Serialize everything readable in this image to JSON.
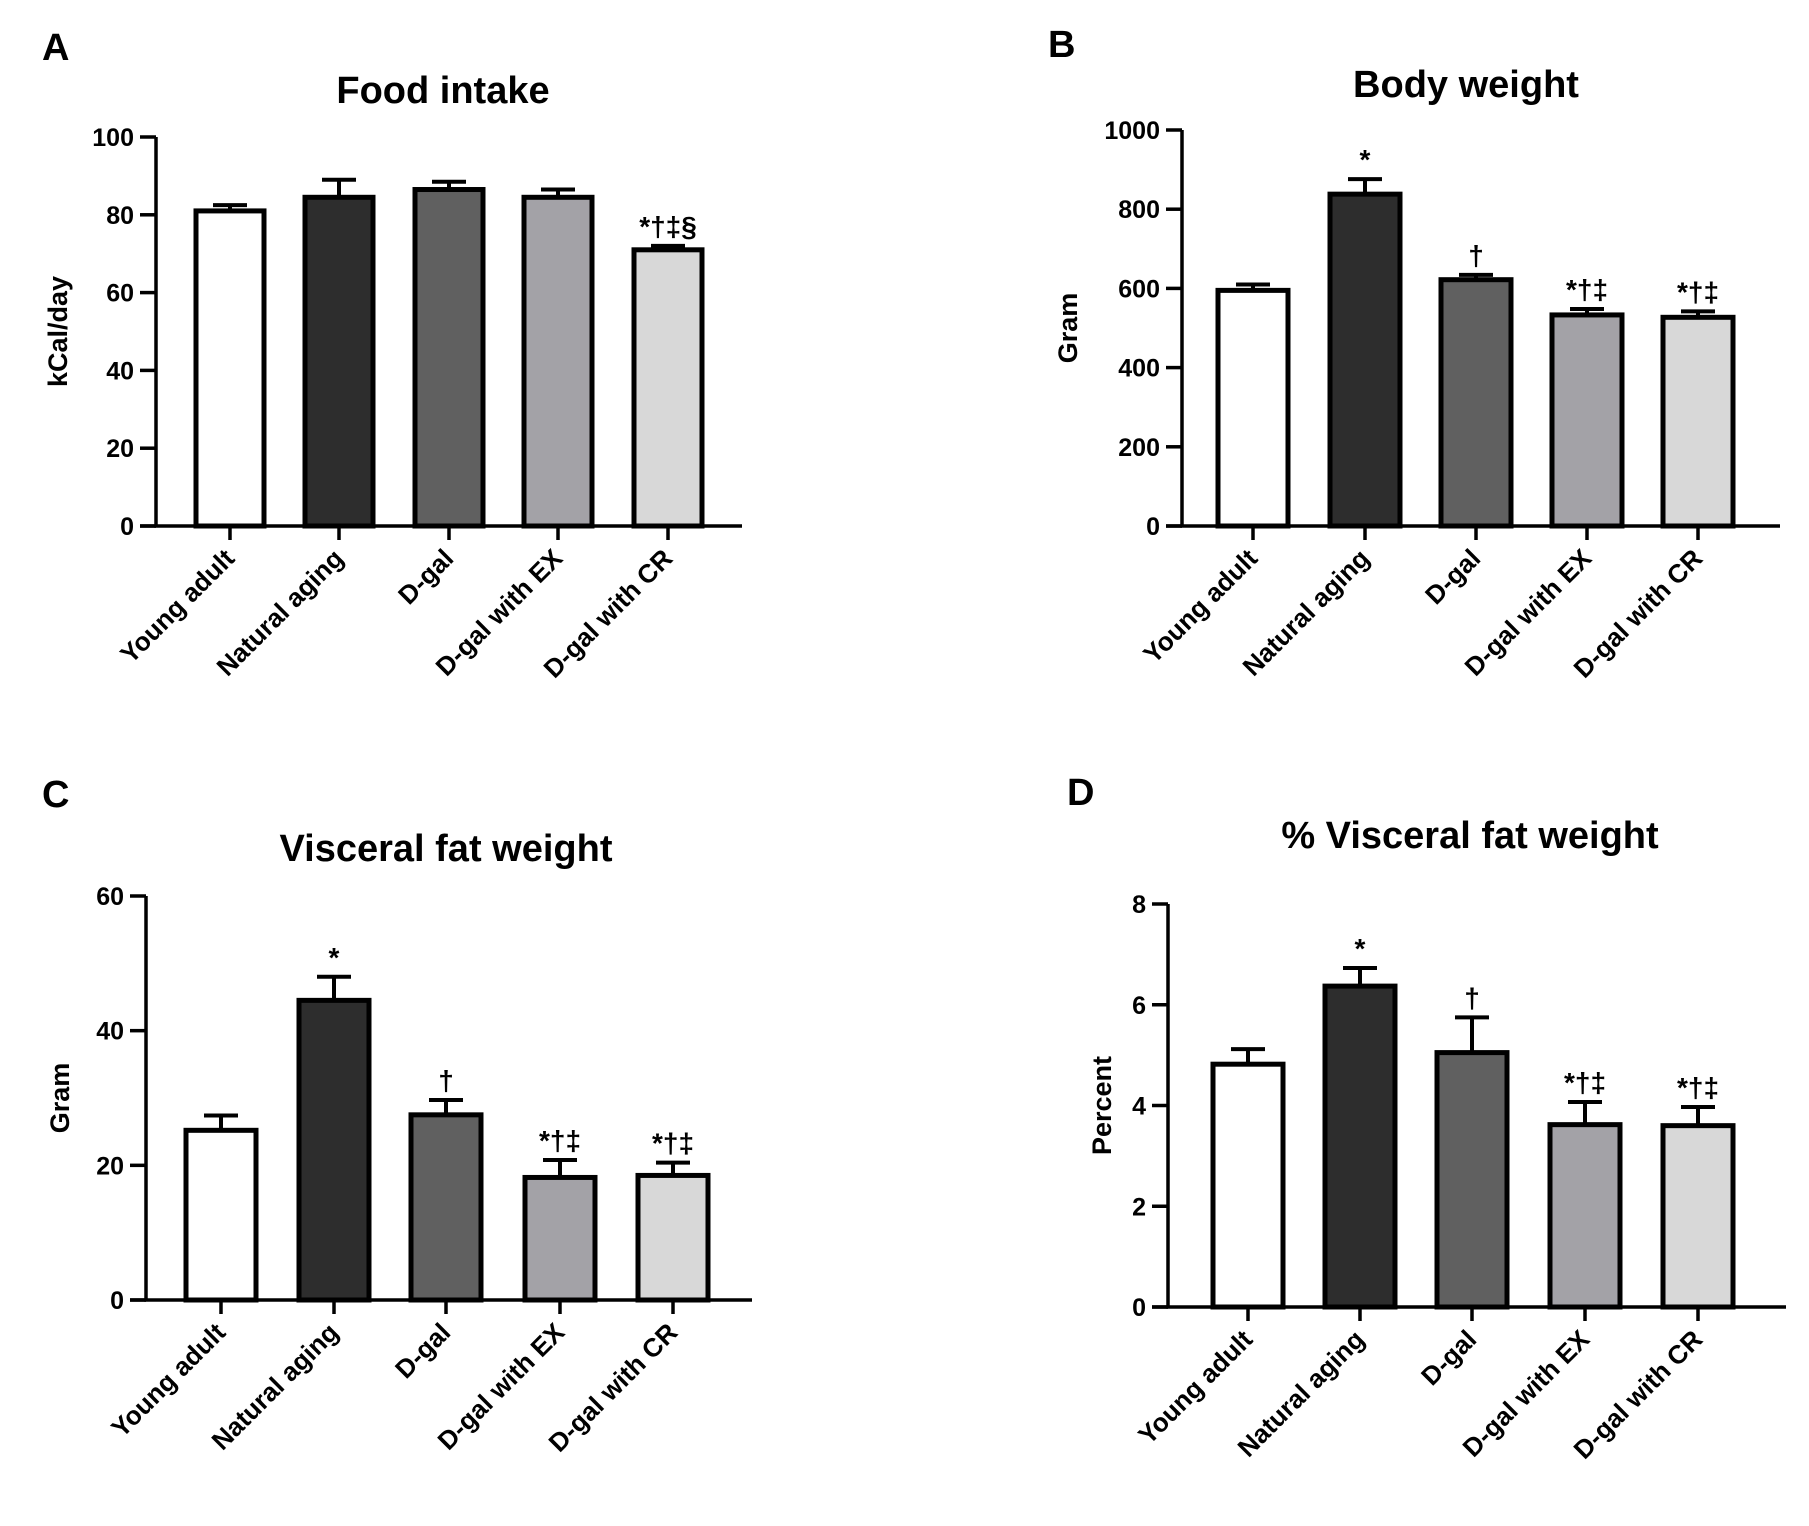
{
  "figure": {
    "bar_colors": [
      "#ffffff",
      "#2d2d2d",
      "#606060",
      "#a3a2a7",
      "#d8d8d8"
    ]
  },
  "chart_data": [
    {
      "panel": "A",
      "type": "bar",
      "title": "Food intake",
      "xlabel": "",
      "ylabel": "kCal/day",
      "ylim": [
        0,
        100
      ],
      "yticks": [
        0,
        20,
        40,
        60,
        80,
        100
      ],
      "grid": false,
      "categories": [
        "Young adult",
        "Natural aging",
        "D-gal",
        "D-gal with EX",
        "D-gal with CR"
      ],
      "values": [
        81,
        84.5,
        86.5,
        84.5,
        71
      ],
      "errors": [
        1.5,
        4.5,
        2,
        2,
        1
      ],
      "significance": [
        "",
        "",
        "",
        "",
        "*†‡§"
      ]
    },
    {
      "panel": "B",
      "type": "bar",
      "title": "Body weight",
      "xlabel": "",
      "ylabel": "Gram",
      "ylim": [
        0,
        1000
      ],
      "yticks": [
        0,
        200,
        400,
        600,
        800,
        1000
      ],
      "grid": false,
      "categories": [
        "Young adult",
        "Natural aging",
        "D-gal",
        "D-gal with EX",
        "D-gal with CR"
      ],
      "values": [
        595,
        838,
        622,
        533,
        527
      ],
      "errors": [
        15,
        38,
        12,
        15,
        15
      ],
      "significance": [
        "",
        "*",
        "†",
        "*†‡",
        "*†‡"
      ]
    },
    {
      "panel": "C",
      "type": "bar",
      "title": "Visceral fat weight",
      "xlabel": "",
      "ylabel": "Gram",
      "ylim": [
        0,
        60
      ],
      "yticks": [
        0,
        20,
        40,
        60
      ],
      "grid": false,
      "categories": [
        "Young adult",
        "Natural aging",
        "D-gal",
        "D-gal with EX",
        "D-gal with CR"
      ],
      "values": [
        25.2,
        44.5,
        27.5,
        18.2,
        18.5
      ],
      "errors": [
        2.2,
        3.5,
        2.2,
        2.6,
        1.9
      ],
      "significance": [
        "",
        "*",
        "†",
        "*†‡",
        "*†‡"
      ]
    },
    {
      "panel": "D",
      "type": "bar",
      "title": "% Visceral fat weight",
      "xlabel": "",
      "ylabel": "Percent",
      "ylim": [
        0,
        8
      ],
      "yticks": [
        0,
        2,
        4,
        6,
        8
      ],
      "grid": false,
      "categories": [
        "Young adult",
        "Natural aging",
        "D-gal",
        "D-gal with EX",
        "D-gal with CR"
      ],
      "values": [
        4.82,
        6.37,
        5.05,
        3.62,
        3.6
      ],
      "errors": [
        0.3,
        0.36,
        0.7,
        0.45,
        0.37
      ],
      "significance": [
        "",
        "*",
        "†",
        "*†‡",
        "*†‡"
      ]
    }
  ]
}
